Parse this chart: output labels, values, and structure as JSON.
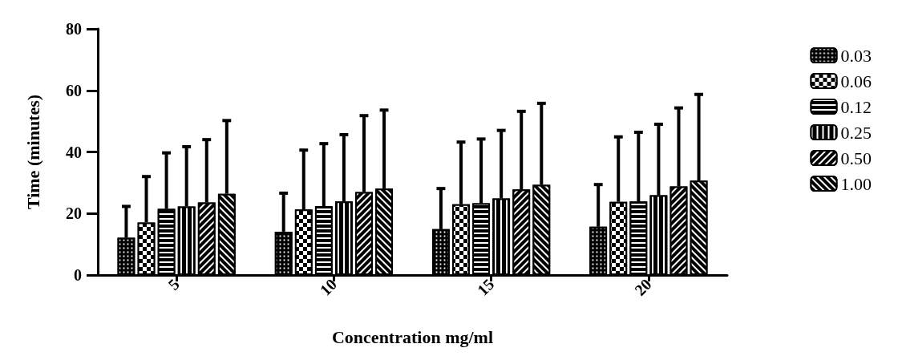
{
  "chart_data": {
    "type": "bar",
    "xlabel": "Concentration mg/ml",
    "ylabel": "Time (minutes)",
    "categories": [
      "5",
      "10",
      "15",
      "20"
    ],
    "series": [
      {
        "name": "0.03",
        "color": "#000000",
        "values": [
          12.1,
          14.1,
          14.9,
          15.7
        ],
        "errors": [
          [
            12.1,
            22.3
          ],
          [
            14.1,
            26.6
          ],
          [
            14.9,
            28.1
          ],
          [
            15.7,
            29.4
          ]
        ]
      },
      {
        "name": "0.06",
        "color": "#000000",
        "values": [
          17.1,
          21.3,
          23.0,
          23.8
        ],
        "errors": [
          [
            17.1,
            32.0
          ],
          [
            21.3,
            40.6
          ],
          [
            23.0,
            43.2
          ],
          [
            23.8,
            44.9
          ]
        ]
      },
      {
        "name": "0.12",
        "color": "#000000",
        "values": [
          21.5,
          22.4,
          23.3,
          23.9
        ],
        "errors": [
          [
            21.5,
            39.7
          ],
          [
            22.4,
            42.7
          ],
          [
            23.3,
            44.2
          ],
          [
            23.9,
            46.4
          ]
        ]
      },
      {
        "name": "0.25",
        "color": "#000000",
        "values": [
          22.3,
          23.9,
          24.9,
          25.9
        ],
        "errors": [
          [
            22.3,
            41.7
          ],
          [
            23.9,
            45.6
          ],
          [
            24.9,
            47.0
          ],
          [
            25.9,
            49.0
          ]
        ]
      },
      {
        "name": "0.50",
        "color": "#000000",
        "values": [
          23.6,
          27.0,
          27.8,
          28.8
        ],
        "errors": [
          [
            23.6,
            44.0
          ],
          [
            27.0,
            51.8
          ],
          [
            27.8,
            53.2
          ],
          [
            28.8,
            54.3
          ]
        ]
      },
      {
        "name": "1.00",
        "color": "#000000",
        "values": [
          26.4,
          28.1,
          29.3,
          30.7
        ],
        "errors": [
          [
            26.4,
            50.2
          ],
          [
            28.1,
            53.6
          ],
          [
            29.3,
            55.8
          ],
          [
            30.7,
            58.7
          ]
        ]
      }
    ],
    "ylim": [
      0,
      80
    ],
    "yticks": [
      0,
      20,
      40,
      60,
      80
    ],
    "grid": false,
    "legend": "top right"
  }
}
